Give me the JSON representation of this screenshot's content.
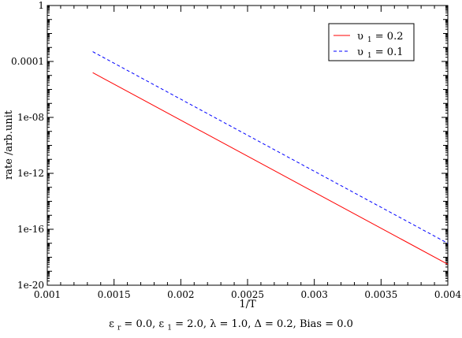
{
  "chart_data": {
    "type": "line",
    "scale_y": "log",
    "xlabel": "1/T",
    "ylabel": "rate /arb.unit",
    "xlim": [
      0.001,
      0.004
    ],
    "ylim_log10": [
      -20,
      0
    ],
    "x_ticks": [
      0.001,
      0.0015,
      0.002,
      0.0025,
      0.003,
      0.0035,
      0.004
    ],
    "x_tick_labels": [
      "0.001",
      "0.0015",
      "0.002",
      "0.0025",
      "0.003",
      "0.0035",
      "0.004"
    ],
    "y_ticks_log10": [
      -20,
      -16,
      -12,
      -8,
      -4,
      0
    ],
    "y_tick_labels": [
      "1e-20",
      "1e-16",
      "1e-12",
      "1e-08",
      "0.0001",
      "1"
    ],
    "grid": false,
    "legend_position": "top-right",
    "series": [
      {
        "name_symbol": "υ",
        "name_sub": "1",
        "name_rest": " = 0.2",
        "color": "#ff0000",
        "dash": "solid",
        "x": [
          0.00134,
          0.004
        ],
        "log10_y": [
          -4.8,
          -18.5
        ]
      },
      {
        "name_symbol": "υ",
        "name_sub": "1",
        "name_rest": " = 0.1",
        "color": "#0000ff",
        "dash": "dashed",
        "x": [
          0.00134,
          0.004
        ],
        "log10_y": [
          -3.3,
          -17.0
        ]
      }
    ]
  },
  "caption": {
    "eps": "ε",
    "sub_r": "r",
    "part1": " = 0.0,  ",
    "eps2": "ε",
    "sub_1": "1",
    "part2": " = 2.0, λ = 1.0, Δ = 0.2,  Bias = 0.0"
  }
}
